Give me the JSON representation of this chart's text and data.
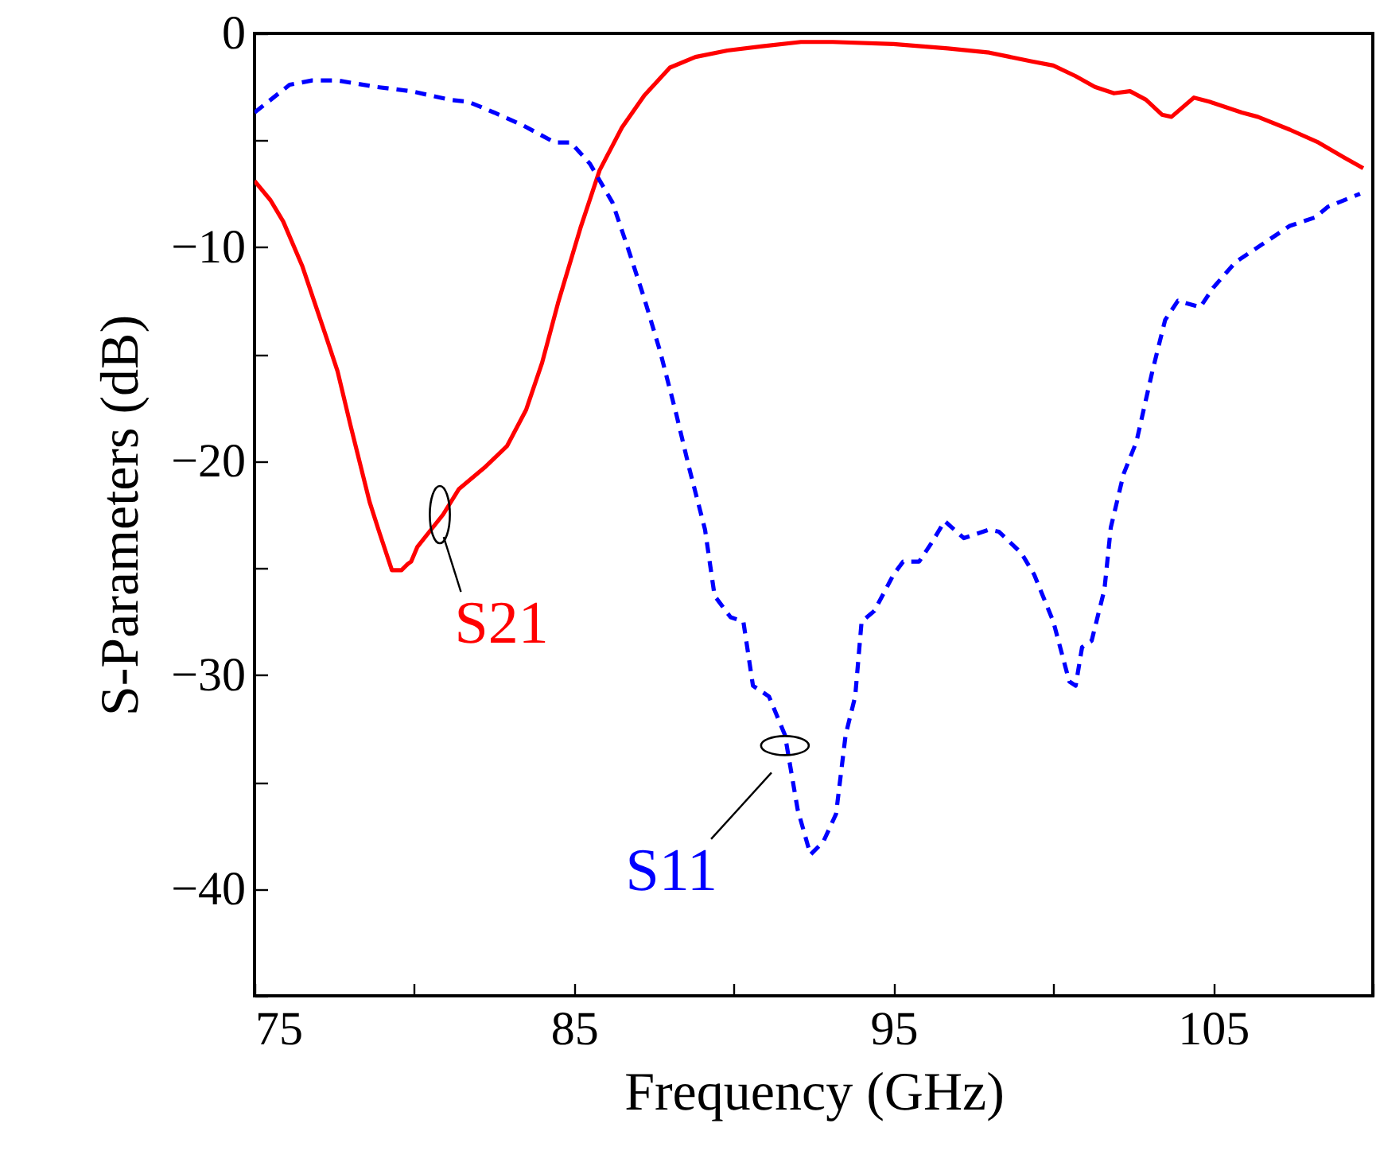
{
  "chart_data": {
    "type": "line",
    "xlabel": "Frequency (GHz)",
    "ylabel": "S-Parameters (dB)",
    "xlim": [
      75,
      110
    ],
    "ylim": [
      -45,
      0
    ],
    "xticks": [
      75,
      {
        "value": 80,
        "label": null
      },
      85,
      {
        "value": 90,
        "label": null
      },
      95,
      {
        "value": 100,
        "label": null
      },
      105,
      {
        "value": 110,
        "label": null
      }
    ],
    "yticks": [
      {
        "value": -45,
        "label": null
      },
      -40,
      {
        "value": -35,
        "label": null
      },
      -30,
      {
        "value": -25,
        "label": null
      },
      -20,
      {
        "value": -15,
        "label": null
      },
      -10,
      {
        "value": -5,
        "label": null
      },
      0
    ],
    "grid": false,
    "series": [
      {
        "color": "#ff0000",
        "line_style": "solid",
        "x": [
          75,
          75.5,
          75.9,
          76.5,
          77.2,
          77.6,
          78.0,
          78.6,
          78.9,
          79.3,
          79.6,
          79.8,
          79.9,
          80.1,
          80.9,
          81.4,
          82.2,
          82.9,
          83.5,
          84.0,
          84.5,
          85.2,
          85.8,
          86.5,
          87.2,
          88.0,
          88.8,
          89.8,
          90.9,
          92.1,
          93.1,
          95.0,
          96.7,
          98.0,
          99.3,
          100.0,
          100.7,
          101.3,
          101.9,
          102.4,
          102.9,
          103.4,
          103.7,
          104.4,
          104.9,
          105.9,
          106.4,
          107.4,
          108.3,
          109.1,
          109.7
        ],
        "values": [
          -6.9,
          -7.8,
          -8.8,
          -10.9,
          -14.0,
          -15.8,
          -18.3,
          -21.9,
          -23.3,
          -25.1,
          -25.1,
          -24.8,
          -24.7,
          -24.0,
          -22.5,
          -21.3,
          -20.3,
          -19.3,
          -17.6,
          -15.4,
          -12.6,
          -9.1,
          -6.4,
          -4.4,
          -2.9,
          -1.6,
          -1.1,
          -0.8,
          -0.6,
          -0.4,
          -0.4,
          -0.5,
          -0.7,
          -0.9,
          -1.3,
          -1.5,
          -2.0,
          -2.5,
          -2.8,
          -2.7,
          -3.1,
          -3.8,
          -3.9,
          -3.0,
          -3.2,
          -3.7,
          -3.9,
          -4.5,
          -5.1,
          -5.8,
          -6.3
        ]
      },
      {
        "color": "#0000ff",
        "line_style": "dashed",
        "x": [
          75,
          76.1,
          76.8,
          77.6,
          78.8,
          79.9,
          81.1,
          81.7,
          82.5,
          83.4,
          84.4,
          84.9,
          85.5,
          86.2,
          86.7,
          87.2,
          87.7,
          88.2,
          88.6,
          89.1,
          89.4,
          89.9,
          90.3,
          90.6,
          91.1,
          91.6,
          92.0,
          92.4,
          92.8,
          93.2,
          93.5,
          93.8,
          94.0,
          94.4,
          95.0,
          95.3,
          95.8,
          96.2,
          96.6,
          97.2,
          98.0,
          98.3,
          99.0,
          99.4,
          100.0,
          100.5,
          100.7,
          100.9,
          101.2,
          101.6,
          101.8,
          102.2,
          102.6,
          103.1,
          103.5,
          103.9,
          104.6,
          105.0,
          105.7,
          106.5,
          107.4,
          108.2,
          108.6,
          109.6
        ],
        "values": [
          -3.7,
          -2.4,
          -2.2,
          -2.2,
          -2.5,
          -2.7,
          -3.1,
          -3.2,
          -3.7,
          -4.3,
          -5.1,
          -5.1,
          -6.1,
          -7.9,
          -10.1,
          -12.4,
          -14.9,
          -17.8,
          -20.3,
          -23.2,
          -26.3,
          -27.3,
          -27.5,
          -30.5,
          -31.0,
          -32.8,
          -36.3,
          -38.4,
          -37.8,
          -36.5,
          -32.8,
          -31.0,
          -27.5,
          -27.0,
          -25.3,
          -24.7,
          -24.7,
          -23.8,
          -22.8,
          -23.6,
          -23.2,
          -23.3,
          -24.3,
          -25.3,
          -27.5,
          -30.3,
          -30.5,
          -28.7,
          -28.4,
          -26.0,
          -23.1,
          -20.6,
          -19.1,
          -15.8,
          -13.4,
          -12.5,
          -12.8,
          -11.9,
          -10.7,
          -9.9,
          -9.0,
          -8.6,
          -8.1,
          -7.5
        ]
      }
    ],
    "annotations": [
      {
        "text": "S21",
        "x": 80.8,
        "y": -22.5
      },
      {
        "text": "S11",
        "x": 91.6,
        "y": -33.3
      }
    ]
  }
}
